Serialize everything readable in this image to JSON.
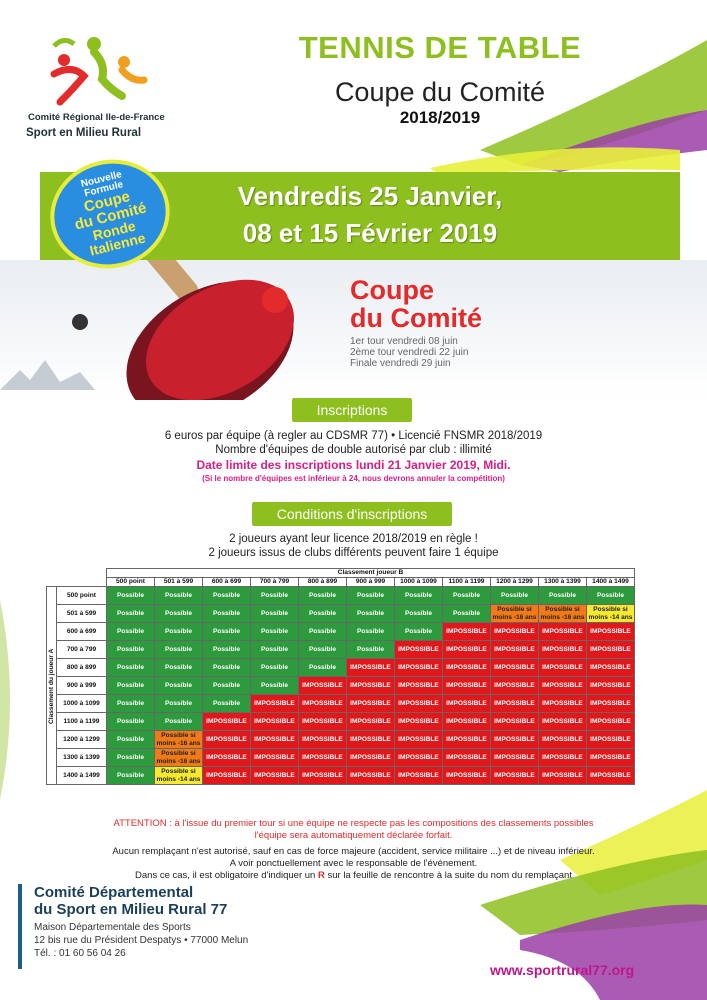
{
  "logo": {
    "org_line1": "Comité Régional Ile-de-France",
    "org_line2": "Sport en Milieu Rural"
  },
  "header": {
    "title": "TENNIS DE TABLE",
    "subtitle": "Coupe du Comité",
    "season": "2018/2019"
  },
  "badge": {
    "line1": "Nouvelle",
    "line2": "Formule",
    "line3": "Coupe",
    "line4": "du Comité",
    "line5": "Ronde",
    "line6": "Italienne"
  },
  "dates": {
    "line1": "Vendredis 25 Janvier,",
    "line2": "08 et 15 Février 2019"
  },
  "poster": {
    "title1": "Coupe",
    "title2": "du Comité",
    "tour1": "1er tour vendredi 08 juin",
    "tour2": "2ème tour vendredi 22 juin",
    "tour3": "Finale vendredi 29 juin"
  },
  "inscriptions": {
    "label": "Inscriptions",
    "line1": "6 euros par équipe (à regler au CDSMR 77) • Licencié FNSMR 2018/2019",
    "line2": "Nombre d'équipes de double autorisé par club : illimité",
    "deadline": "Date limite des inscriptions lundi 21 Janvier 2019, Midi.",
    "note": "(Si le nombre d'équipes est inférieur à 24, nous devrons annuler la compétition)"
  },
  "conditions": {
    "label": "Conditions d'inscriptions",
    "line1": "2 joueurs ayant leur licence 2018/2019 en règle !",
    "line2": "2 joueurs issus de clubs différents peuvent faire 1 équipe"
  },
  "table": {
    "col_title": "Classement joueur B",
    "row_title": "Classement du joueur A",
    "columns": [
      "500 point",
      "501 à 599",
      "600 à 699",
      "700 à 799",
      "800 à 899",
      "900 à 999",
      "1000 à 1099",
      "1100 à 1199",
      "1200 à 1299",
      "1300 à 1399",
      "1400 à 1499"
    ],
    "rows": [
      "500 point",
      "501 à 599",
      "600 à 699",
      "700 à 799",
      "800 à 899",
      "900 à 999",
      "1000 à 1099",
      "1100 à 1199",
      "1200 à 1299",
      "1300 à 1399",
      "1400 à 1499"
    ],
    "labels": {
      "P": "Possible",
      "I": "IMPOSSIBLE",
      "O": "Possible si moins -16 ans",
      "Y": "Possible si moins -14 ans"
    },
    "cells": [
      "PPPPPPPPPPP",
      "PPPPPPPPOOY",
      "PPPPPPPIIII",
      "PPPPPPIIIII",
      "PPPPPIIIIII",
      "PPPPIIIIIII",
      "PPPIIIIIIII",
      "PPIIIIIIIII",
      "POIIIIIIIII",
      "POIIIIIIIII",
      "PYIIIIIIIII"
    ]
  },
  "attention": {
    "line1": "ATTENTION : à l'issue du premier tour si une équipe ne respecte pas les compositions des classements possibles",
    "line2": "l'équipe sera automatiquement déclarée forfait."
  },
  "rules": {
    "line1": "Aucun remplaçant n'est autorisé, sauf en cas de force majeure (accident, service militaire ...) et de niveau inférieur.",
    "line2": "A voir ponctuellement avec le responsable de l'événement.",
    "line3a": "Dans ce cas, il est obligatoire d'indiquer un ",
    "line3r": "R",
    "line3b": " sur la feuille de rencontre à la suite du nom du remplaçant"
  },
  "footer": {
    "org1": "Comité Départemental",
    "org2": "du Sport en Milieu Rural 77",
    "addr1": "Maison Départementale des Sports",
    "addr2": "12 bis rue du Président Despatys • 77000 Melun",
    "tel": "Tél. : 01 60 56 04 26",
    "website": "www.sportrural77.org"
  },
  "colors": {
    "green": "#8dbf1e",
    "red": "#e0171b",
    "possible": "#2e9a3e",
    "orange": "#f07a17",
    "yellow": "#f5e92f",
    "magenta": "#c0168a"
  }
}
